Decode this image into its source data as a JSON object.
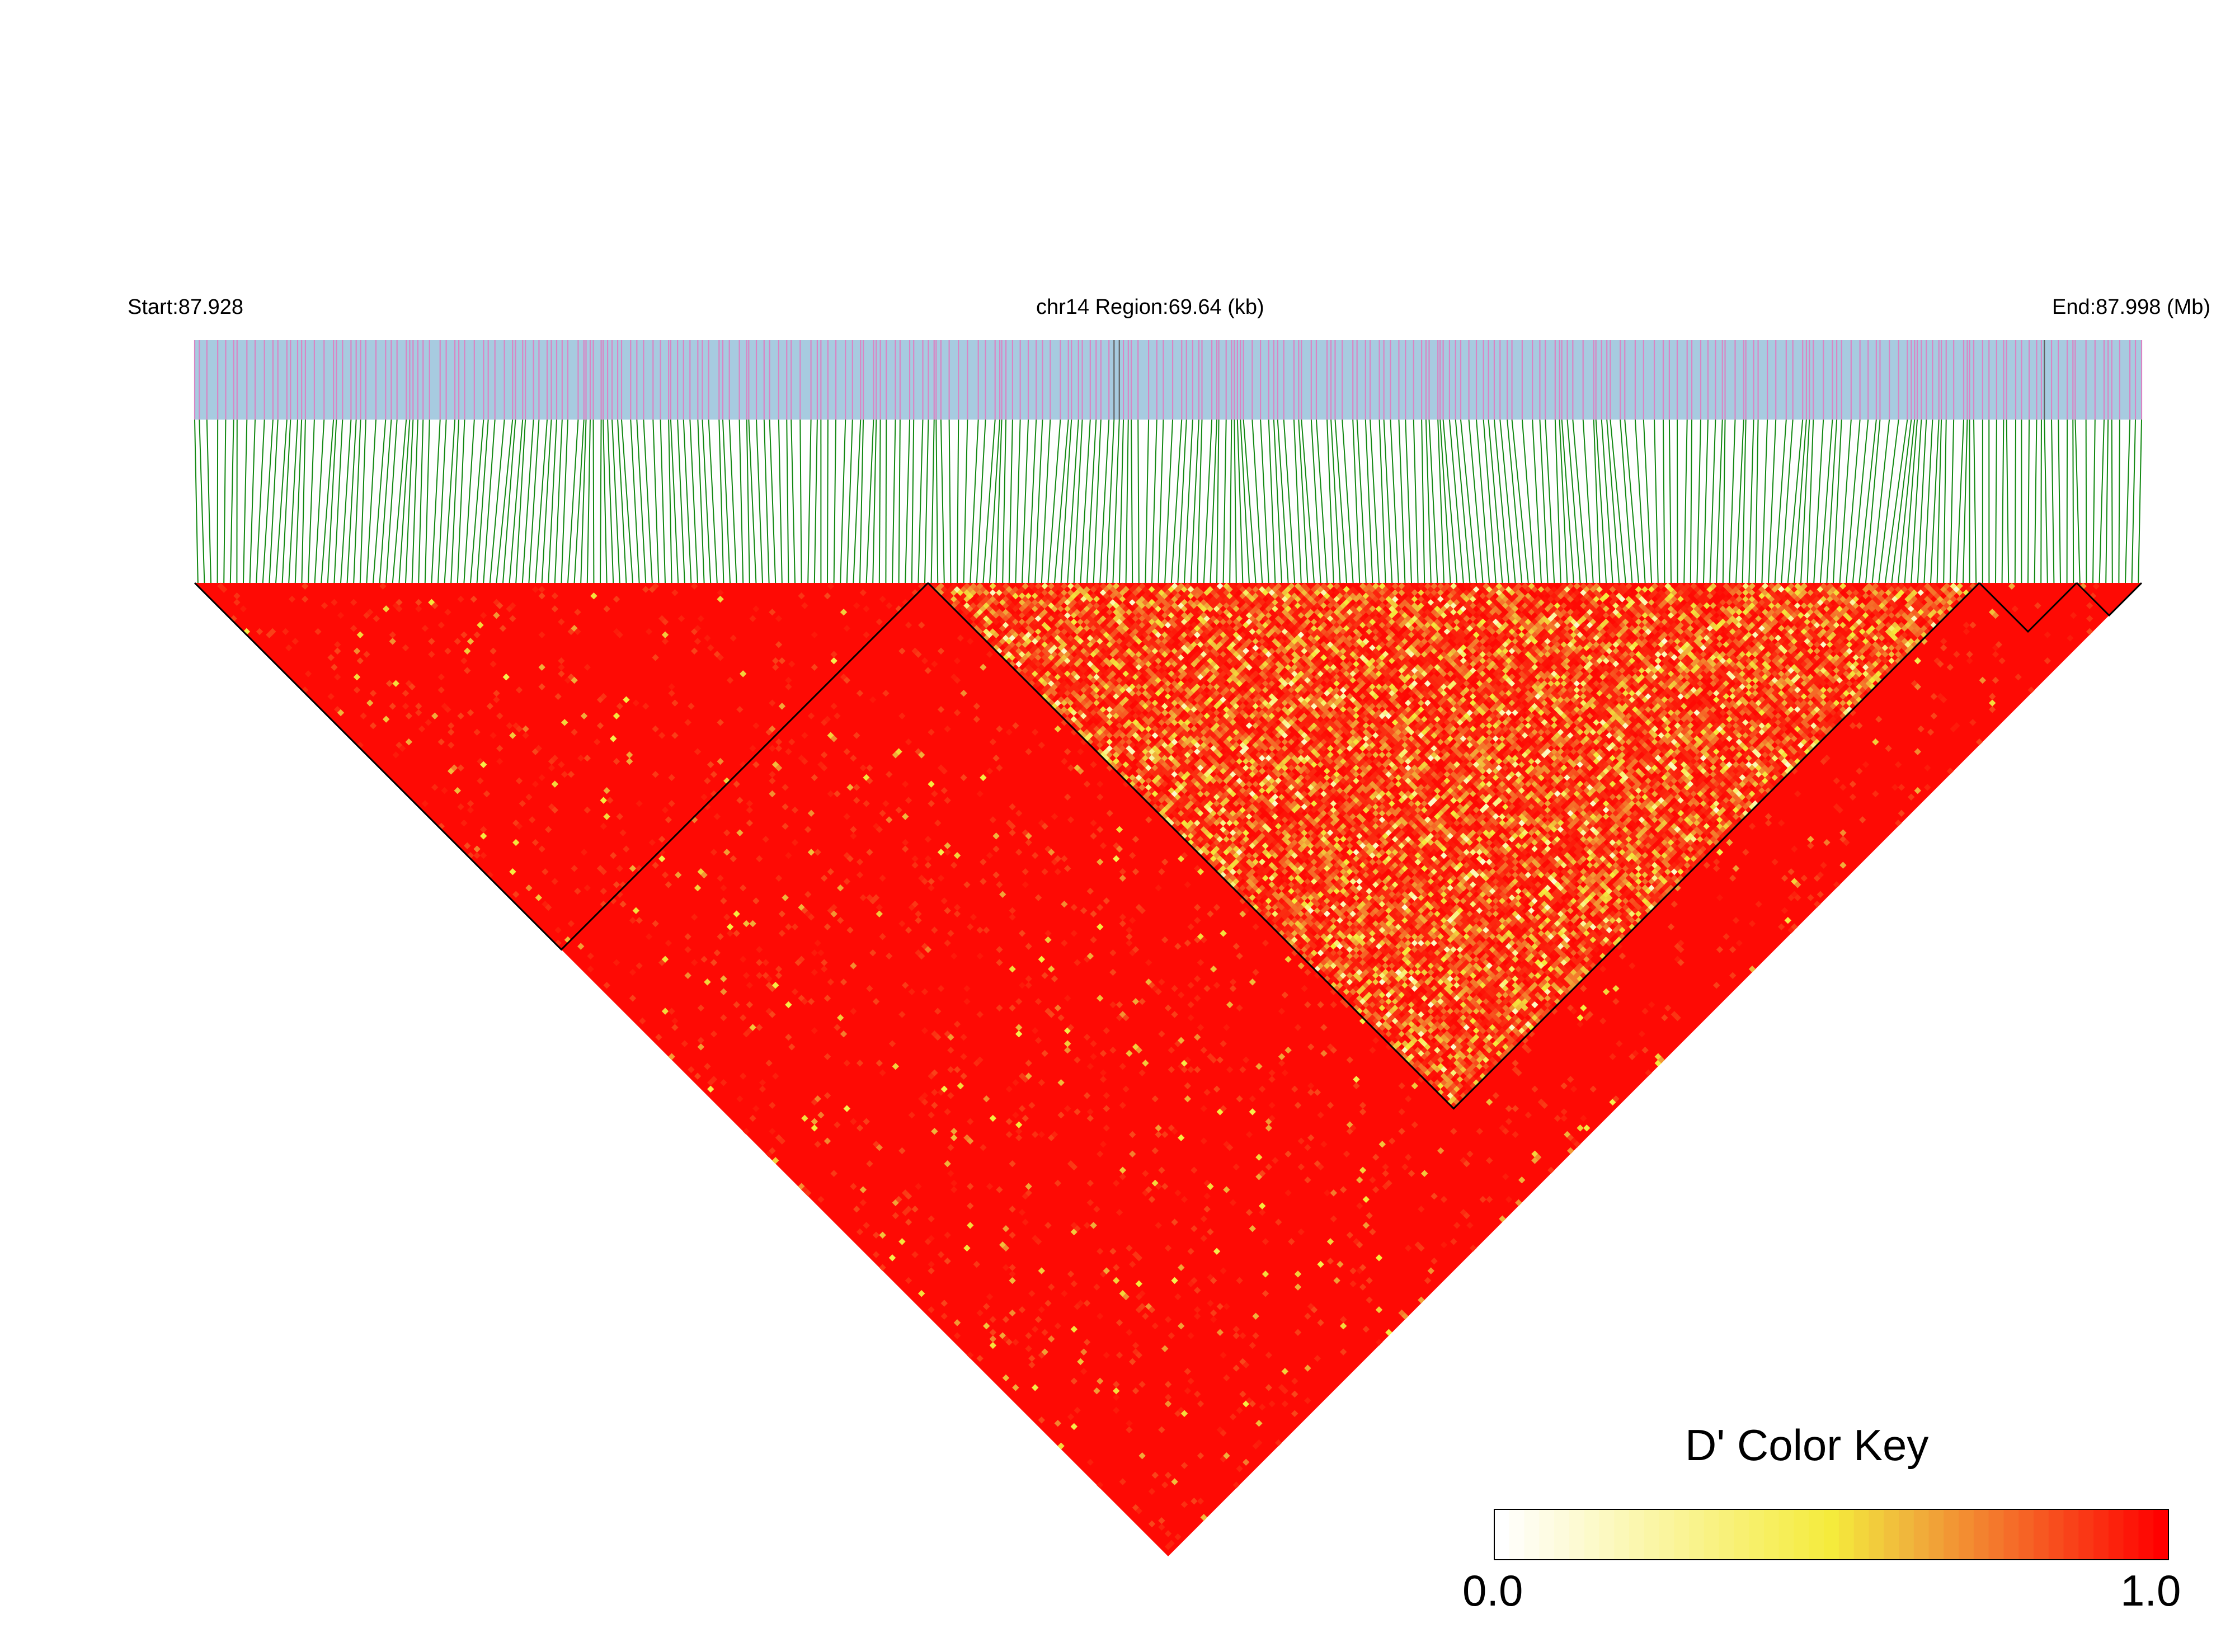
{
  "chart_data": {
    "type": "heatmap",
    "subtype": "LD triangle plot (D')",
    "header": {
      "start_label": "Start:87.928",
      "region_label": "chr14 Region:69.64 (kb)",
      "end_label": "End:87.998 (Mb)"
    },
    "region": {
      "chromosome": "chr14",
      "start_mb": 87.928,
      "end_mb": 87.998,
      "length_kb": 69.64
    },
    "snp_count": 300,
    "haplotype_blocks": [
      {
        "first_snp": 1,
        "last_snp": 113,
        "mean_dprime": 0.97
      },
      {
        "first_snp": 114,
        "last_snp": 275,
        "mean_dprime": 0.82
      },
      {
        "first_snp": 276,
        "last_snp": 290,
        "mean_dprime": 0.98
      },
      {
        "first_snp": 291,
        "last_snp": 300,
        "mean_dprime": 0.97
      }
    ],
    "background_dprime": 0.98,
    "color_key": {
      "title": "D' Color Key",
      "min_label": "0.0",
      "max_label": "1.0",
      "range": [
        0.0,
        1.0
      ],
      "steps": 45,
      "colors": [
        "#ffffff",
        "#f5eb3c",
        "#f0b43c",
        "#f56a28",
        "#ff0000"
      ],
      "color_stops": [
        0.0,
        0.5,
        0.62,
        0.78,
        1.0
      ]
    },
    "annotation_track": {
      "background": "#a7cbe0",
      "marker": "#d985c4",
      "marker_dark": "#606060"
    },
    "connector_color": "#118811"
  }
}
